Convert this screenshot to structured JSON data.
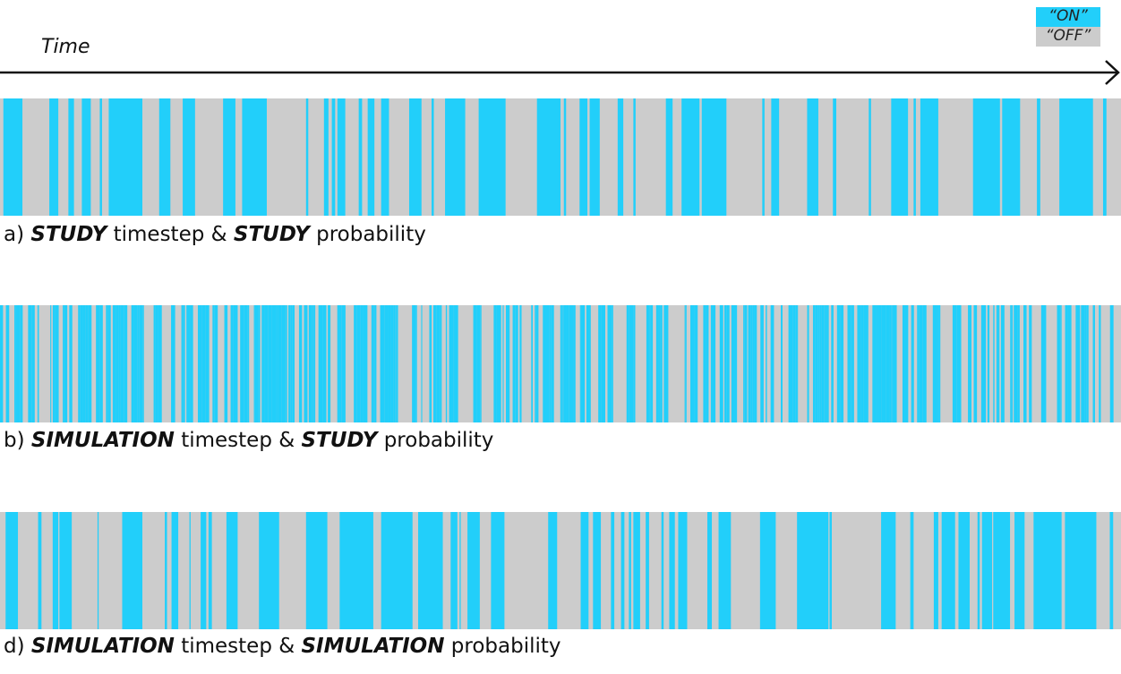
{
  "colors": {
    "on": "#22CFFA",
    "off": "#CCCCCC",
    "axis": "#111111"
  },
  "legend": {
    "on_label": "“ON”",
    "off_label": "“OFF”"
  },
  "axis": {
    "label": "Time"
  },
  "panels": [
    {
      "id": "a",
      "caption": {
        "prefix": "a)",
        "term1": "STUDY",
        "mid": "timestep &",
        "term2": "STUDY",
        "suffix": "probability"
      },
      "pattern": "study",
      "on_intervals": [
        [
          0.003,
          0.02
        ],
        [
          0.044,
          0.052
        ],
        [
          0.061,
          0.066
        ],
        [
          0.073,
          0.081
        ],
        [
          0.089,
          0.091
        ],
        [
          0.097,
          0.127
        ],
        [
          0.142,
          0.152
        ],
        [
          0.163,
          0.174
        ],
        [
          0.199,
          0.21
        ],
        [
          0.216,
          0.238
        ],
        [
          0.273,
          0.275
        ],
        [
          0.289,
          0.293
        ],
        [
          0.296,
          0.299
        ],
        [
          0.301,
          0.308
        ],
        [
          0.32,
          0.323
        ],
        [
          0.328,
          0.334
        ],
        [
          0.34,
          0.347
        ],
        [
          0.365,
          0.376
        ],
        [
          0.385,
          0.387
        ],
        [
          0.397,
          0.415
        ],
        [
          0.427,
          0.451
        ],
        [
          0.479,
          0.5
        ],
        [
          0.503,
          0.505
        ],
        [
          0.517,
          0.524
        ],
        [
          0.526,
          0.535
        ],
        [
          0.551,
          0.556
        ],
        [
          0.565,
          0.567
        ],
        [
          0.594,
          0.6
        ],
        [
          0.608,
          0.624
        ],
        [
          0.626,
          0.648
        ],
        [
          0.68,
          0.682
        ],
        [
          0.688,
          0.695
        ],
        [
          0.72,
          0.73
        ],
        [
          0.743,
          0.746
        ],
        [
          0.775,
          0.777
        ],
        [
          0.795,
          0.81
        ],
        [
          0.815,
          0.817
        ],
        [
          0.821,
          0.837
        ],
        [
          0.868,
          0.892
        ],
        [
          0.894,
          0.91
        ],
        [
          0.925,
          0.928
        ],
        [
          0.945,
          0.975
        ],
        [
          0.984,
          0.987
        ]
      ]
    },
    {
      "id": "b",
      "caption": {
        "prefix": "b)",
        "term1": "SIMULATION",
        "mid": "timestep &",
        "term2": "STUDY",
        "suffix": "probability"
      },
      "pattern": "dense",
      "on_probability": 0.55
    },
    {
      "id": "d",
      "caption": {
        "prefix": "d)",
        "term1": "SIMULATION",
        "mid": "timestep &",
        "term2": "SIMULATION",
        "suffix": "probability"
      },
      "pattern": "simulation",
      "on_intervals": [
        [
          0.005,
          0.016
        ],
        [
          0.034,
          0.037
        ],
        [
          0.047,
          0.052
        ],
        [
          0.053,
          0.064
        ],
        [
          0.087,
          0.088
        ],
        [
          0.109,
          0.127
        ],
        [
          0.147,
          0.149
        ],
        [
          0.153,
          0.159
        ],
        [
          0.169,
          0.17
        ],
        [
          0.179,
          0.184
        ],
        [
          0.186,
          0.189
        ],
        [
          0.202,
          0.212
        ],
        [
          0.231,
          0.249
        ],
        [
          0.273,
          0.292
        ],
        [
          0.303,
          0.333
        ],
        [
          0.34,
          0.368
        ],
        [
          0.373,
          0.395
        ],
        [
          0.402,
          0.408
        ],
        [
          0.41,
          0.411
        ],
        [
          0.417,
          0.428
        ],
        [
          0.438,
          0.45
        ],
        [
          0.489,
          0.497
        ],
        [
          0.518,
          0.525
        ],
        [
          0.529,
          0.536
        ],
        [
          0.545,
          0.548
        ],
        [
          0.554,
          0.557
        ],
        [
          0.561,
          0.563
        ],
        [
          0.565,
          0.571
        ],
        [
          0.576,
          0.579
        ],
        [
          0.59,
          0.592
        ],
        [
          0.597,
          0.602
        ],
        [
          0.605,
          0.613
        ],
        [
          0.631,
          0.635
        ],
        [
          0.641,
          0.652
        ],
        [
          0.678,
          0.692
        ],
        [
          0.711,
          0.739
        ],
        [
          0.74,
          0.742
        ],
        [
          0.786,
          0.799
        ],
        [
          0.812,
          0.815
        ],
        [
          0.833,
          0.837
        ],
        [
          0.84,
          0.852
        ],
        [
          0.855,
          0.865
        ],
        [
          0.872,
          0.874
        ],
        [
          0.876,
          0.885
        ],
        [
          0.886,
          0.901
        ],
        [
          0.905,
          0.914
        ],
        [
          0.922,
          0.947
        ],
        [
          0.95,
          0.978
        ],
        [
          0.99,
          0.993
        ]
      ]
    }
  ]
}
